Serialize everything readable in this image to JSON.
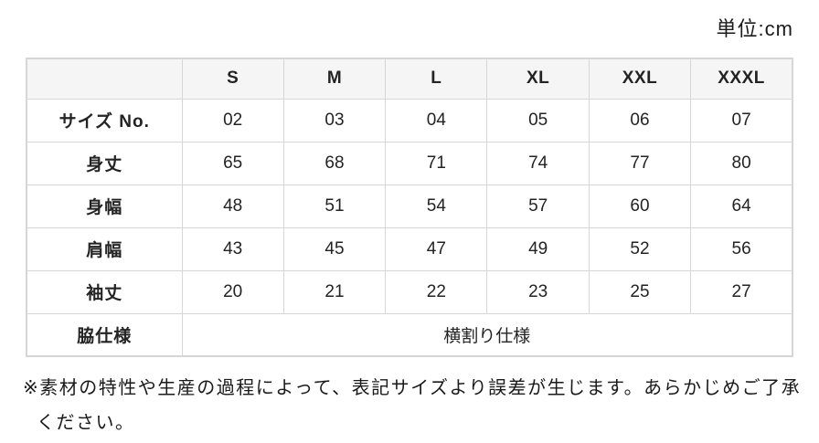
{
  "page": {
    "unit_label": "単位:cm"
  },
  "chart_data": {
    "type": "table",
    "unit": "cm",
    "columns": [
      "S",
      "M",
      "L",
      "XL",
      "XXL",
      "XXXL"
    ],
    "rows": [
      {
        "label": "サイズ No.",
        "values": [
          "02",
          "03",
          "04",
          "05",
          "06",
          "07"
        ]
      },
      {
        "label": "身丈",
        "values": [
          "65",
          "68",
          "71",
          "74",
          "77",
          "80"
        ]
      },
      {
        "label": "身幅",
        "values": [
          "48",
          "51",
          "54",
          "57",
          "60",
          "64"
        ]
      },
      {
        "label": "肩幅",
        "values": [
          "43",
          "45",
          "47",
          "49",
          "52",
          "56"
        ]
      },
      {
        "label": "袖丈",
        "values": [
          "20",
          "21",
          "22",
          "23",
          "25",
          "27"
        ]
      },
      {
        "label": "脇仕様",
        "values": [
          "横割り仕様"
        ],
        "colspan": 6
      }
    ]
  },
  "note": {
    "full_text": "※素材の特性や生産の過程によって、表記サイズより誤差が生じます。あらかじめご了承ください。",
    "line1": "※素材の特性や生産の過程によって、表記サイズより誤差が生じます。あらかじめご了承",
    "line2": "ください。"
  },
  "colors": {
    "header_background": "#f5f5f6",
    "border": "#d6d6d6",
    "text": "#232323",
    "page_background": "#ffffff"
  }
}
